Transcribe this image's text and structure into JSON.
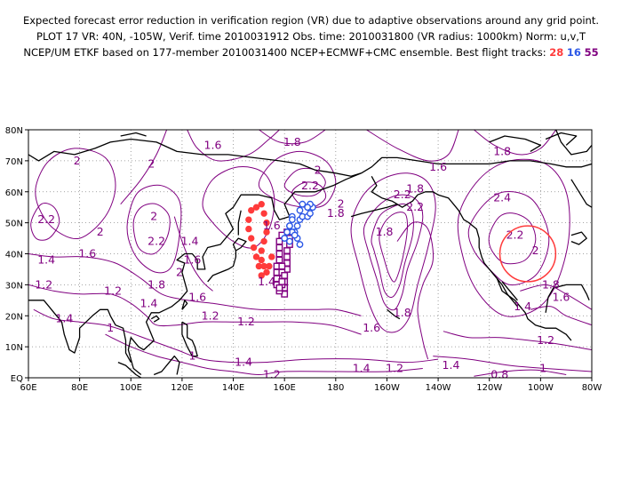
{
  "title": {
    "line1": "Expected forecast error reduction in verification region (VR) due to adaptive observations around any grid point.",
    "line2": "PLOT 17 VR: 40N, -105W, Verif. time 2010031912 Obs. time: 2010031800 (VR radius: 1000km) Norm: u,v,T",
    "line3_prefix": "NCEP/UM ETKF based on 177-member 2010031400 NCEP+ECMWF+CMC ensemble. Best flight tracks:",
    "track_red": "28",
    "track_blue": "16",
    "track_purple": "55"
  },
  "colors": {
    "contour": "#800080",
    "coast": "#000000",
    "grid": "#888888",
    "track_red": "#ff3b3b",
    "track_blue": "#2b57e6",
    "track_purple": "#800080",
    "vr_circle": "#ff3b3b"
  },
  "axes": {
    "x_ticks": [
      "60E",
      "80E",
      "100E",
      "120E",
      "140E",
      "160E",
      "180",
      "160W",
      "140W",
      "120W",
      "100W",
      "80W"
    ],
    "y_ticks": [
      "EQ",
      "10N",
      "20N",
      "30N",
      "40N",
      "50N",
      "60N",
      "70N",
      "80N"
    ]
  },
  "verification_region": {
    "lat": 40,
    "lon": -105,
    "radius_km": 1000
  },
  "contour_labels": [
    {
      "t": "1.6",
      "lon": 132,
      "lat": 75
    },
    {
      "t": "1.8",
      "lon": 163,
      "lat": 76
    },
    {
      "t": "2",
      "lon": 79,
      "lat": 70
    },
    {
      "t": "2",
      "lon": 108,
      "lat": 69
    },
    {
      "t": "2",
      "lon": 173,
      "lat": 67
    },
    {
      "t": "2.2",
      "lon": 170,
      "lat": 62
    },
    {
      "t": "1.8",
      "lon": 211,
      "lat": 61
    },
    {
      "t": "1.6",
      "lon": 220,
      "lat": 68
    },
    {
      "t": "2",
      "lon": 182,
      "lat": 56
    },
    {
      "t": "1.8",
      "lon": 180,
      "lat": 53
    },
    {
      "t": "1.6",
      "lon": 155,
      "lat": 49
    },
    {
      "t": "2",
      "lon": 88,
      "lat": 47
    },
    {
      "t": "2.2",
      "lon": 67,
      "lat": 51
    },
    {
      "t": "2",
      "lon": 109,
      "lat": 52
    },
    {
      "t": "2.2",
      "lon": 110,
      "lat": 44
    },
    {
      "t": "1.4",
      "lon": 123,
      "lat": 44
    },
    {
      "t": "1.6",
      "lon": 124,
      "lat": 38
    },
    {
      "t": "1.6",
      "lon": 83,
      "lat": 40
    },
    {
      "t": "1.4",
      "lon": 67,
      "lat": 38
    },
    {
      "t": "2",
      "lon": 119,
      "lat": 34
    },
    {
      "t": "1.8",
      "lon": 110,
      "lat": 30
    },
    {
      "t": "1.2",
      "lon": 66,
      "lat": 30
    },
    {
      "t": "1.2",
      "lon": 93,
      "lat": 28
    },
    {
      "t": "1.4",
      "lon": 107,
      "lat": 24
    },
    {
      "t": "1.6",
      "lon": 126,
      "lat": 26
    },
    {
      "t": "1.4",
      "lon": 74,
      "lat": 19
    },
    {
      "t": "1.2",
      "lon": 131,
      "lat": 20
    },
    {
      "t": "1.2",
      "lon": 145,
      "lat": 18
    },
    {
      "t": "1.4",
      "lon": 153,
      "lat": 31
    },
    {
      "t": "1",
      "lon": 92,
      "lat": 16
    },
    {
      "t": "1",
      "lon": 124,
      "lat": 7
    },
    {
      "t": "1.4",
      "lon": 144,
      "lat": 5
    },
    {
      "t": "1.2",
      "lon": 155,
      "lat": 1
    },
    {
      "t": "1.8",
      "lon": 199,
      "lat": 47
    },
    {
      "t": "1.8",
      "lon": 206,
      "lat": 21
    },
    {
      "t": "1.6",
      "lon": 194,
      "lat": 16
    },
    {
      "t": "2.2",
      "lon": 206,
      "lat": 59
    },
    {
      "t": "2.2",
      "lon": 211,
      "lat": 55
    },
    {
      "t": "1.4",
      "lon": 190,
      "lat": 3
    },
    {
      "t": "1.2",
      "lon": 203,
      "lat": 3
    },
    {
      "t": "1.4",
      "lon": 225,
      "lat": 4
    },
    {
      "t": "1.8",
      "lon": 245,
      "lat": 73
    },
    {
      "t": "2.4",
      "lon": 245,
      "lat": 58
    },
    {
      "t": "2.2",
      "lon": 250,
      "lat": 46
    },
    {
      "t": "2",
      "lon": 258,
      "lat": 41
    },
    {
      "t": "1.8",
      "lon": 264,
      "lat": 30
    },
    {
      "t": "1.6",
      "lon": 268,
      "lat": 26
    },
    {
      "t": "1.4",
      "lon": 253,
      "lat": 23
    },
    {
      "t": "1.2",
      "lon": 262,
      "lat": 12
    },
    {
      "t": "1",
      "lon": 261,
      "lat": 3
    },
    {
      "t": "0.8",
      "lon": 244,
      "lat": 1
    }
  ]
}
